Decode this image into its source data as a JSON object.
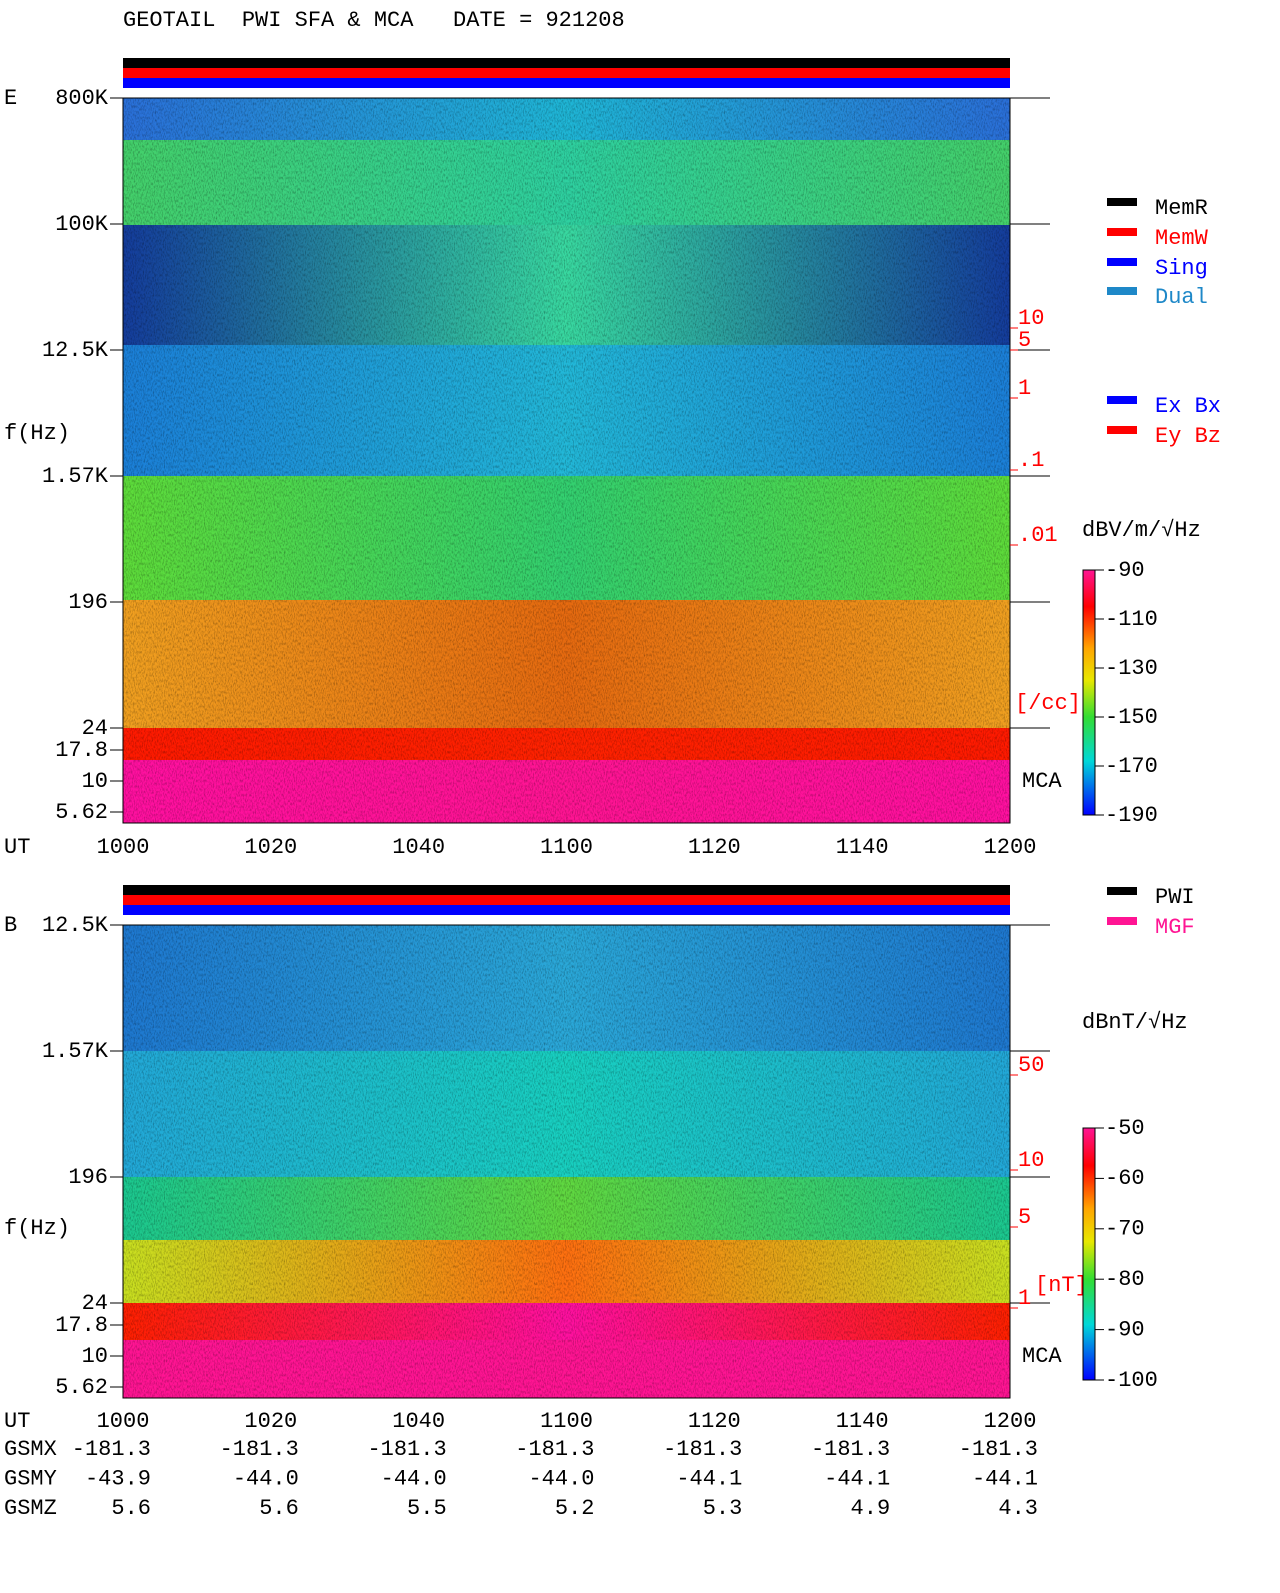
{
  "title": "GEOTAIL  PWI SFA & MCA   DATE = 921208",
  "panels": [
    {
      "label": "E",
      "ylabel": "f(Hz)",
      "xlabel": "UT",
      "yticks": [
        "800K",
        "100K",
        "12.5K",
        "1.57K",
        "196",
        "24",
        "17.8",
        "10",
        "5.62"
      ],
      "xticks": [
        "1000",
        "1020",
        "1040",
        "1100",
        "1120",
        "1140",
        "1200"
      ],
      "right_scale": [
        "10",
        "5",
        "1",
        ".1",
        ".01"
      ],
      "right_unit": "[/cc]",
      "mca": "MCA",
      "legend": [
        {
          "name": "MemR",
          "color": "#000000"
        },
        {
          "name": "MemW",
          "color": "#ff0000"
        },
        {
          "name": "Sing",
          "color": "#0000ff"
        },
        {
          "name": "Dual",
          "color": "#1e88c8"
        }
      ],
      "legend2": [
        {
          "name": "Ex Bx",
          "color": "#0000ff"
        },
        {
          "name": "Ey Bz",
          "color": "#ff0000"
        }
      ],
      "colorbar": {
        "unit": "dBV/m/√Hz",
        "ticks": [
          -90,
          -110,
          -130,
          -150,
          -170,
          -190
        ]
      }
    },
    {
      "label": "B",
      "ylabel": "f(Hz)",
      "xlabel": "UT",
      "yticks": [
        "12.5K",
        "1.57K",
        "196",
        "24",
        "17.8",
        "10",
        "5.62"
      ],
      "xticks": [
        "1000",
        "1020",
        "1040",
        "1100",
        "1120",
        "1140",
        "1200"
      ],
      "right_scale": [
        "50",
        "10",
        "5",
        "1"
      ],
      "right_unit": "[nT]",
      "mca": "MCA",
      "legend": [
        {
          "name": "PWI",
          "color": "#000000"
        },
        {
          "name": "MGF",
          "color": "#ff1493"
        }
      ],
      "colorbar": {
        "unit": "dBnT/√Hz",
        "ticks": [
          -50,
          -60,
          -70,
          -80,
          -90,
          -100
        ]
      }
    }
  ],
  "orbit": [
    {
      "name": "GSMX",
      "values": [
        "-181.3",
        "-181.3",
        "-181.3",
        "-181.3",
        "-181.3",
        "-181.3",
        "-181.3"
      ]
    },
    {
      "name": "GSMY",
      "values": [
        "-43.9",
        "-44.0",
        "-44.0",
        "-44.0",
        "-44.1",
        "-44.1",
        "-44.1"
      ]
    },
    {
      "name": "GSMZ",
      "values": [
        "5.6",
        "5.6",
        "5.5",
        "5.2",
        "5.3",
        "4.9",
        "4.3"
      ]
    }
  ]
}
